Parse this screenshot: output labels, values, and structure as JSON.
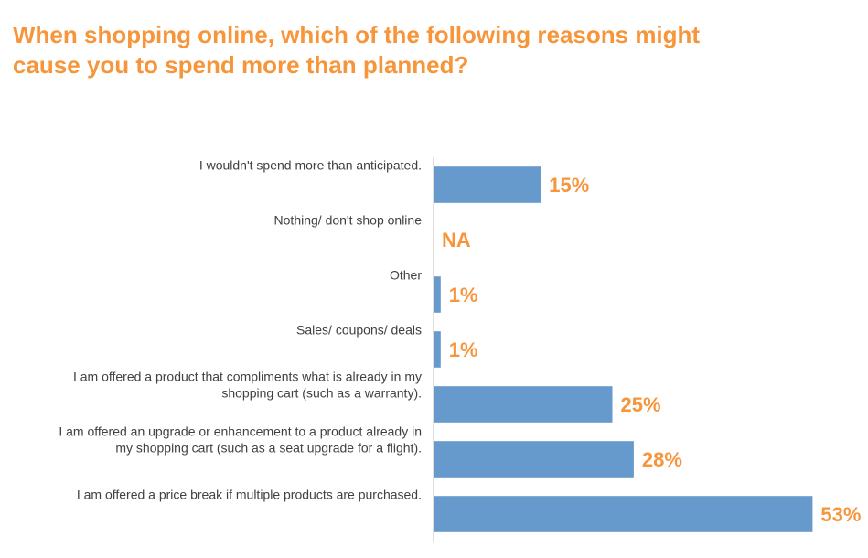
{
  "title": {
    "line1": "When shopping online, which of the following reasons might",
    "line2": "cause you to spend more than planned?"
  },
  "colors": {
    "title": "#f7953b",
    "bar": "#6699cc",
    "value_label": "#f7953b",
    "axis": "#bfbfbf"
  },
  "chart_data": {
    "type": "bar",
    "orientation": "horizontal",
    "categories": [
      [
        "I wouldn't spend more than anticipated."
      ],
      [
        "Nothing/ don't shop online"
      ],
      [
        "Other"
      ],
      [
        "Sales/ coupons/ deals"
      ],
      [
        "I am offered a product that compliments what is already in my",
        "shopping cart (such as a warranty)."
      ],
      [
        "I am offered an upgrade or enhancement to a product already in",
        "my shopping cart (such as a seat upgrade for a flight)."
      ],
      [
        "I am offered a price break if multiple products are purchased."
      ]
    ],
    "values": [
      15,
      null,
      1,
      1,
      25,
      28,
      53
    ],
    "value_labels": [
      "15%",
      "NA",
      "1%",
      "1%",
      "25%",
      "28%",
      "53%"
    ],
    "unit": "%",
    "xlim": [
      0,
      55
    ],
    "grid": false,
    "legend": "none"
  }
}
